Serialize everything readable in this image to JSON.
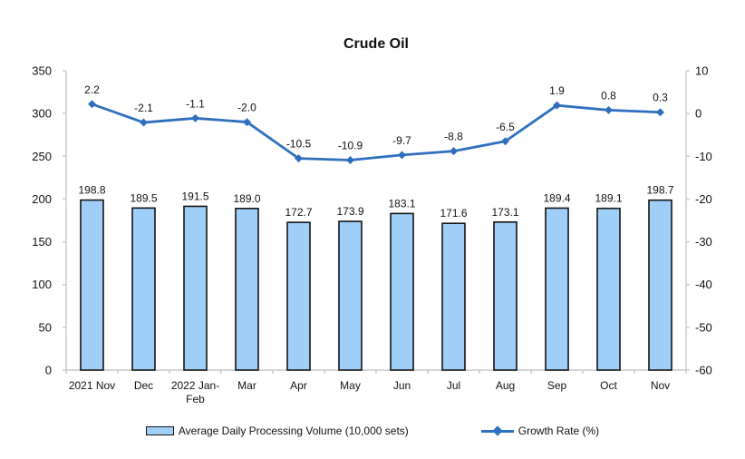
{
  "title": "Crude Oil",
  "colors": {
    "bar_fill": "#9fcff8",
    "bar_stroke": "#141414",
    "line": "#2e6fbe",
    "axis": "#c8c8c8",
    "text": "#111111"
  },
  "legend": [
    {
      "label": "Average Daily Processing Volume (10,000 sets)",
      "type": "bar-swatch"
    },
    {
      "label": "Growth Rate (%)",
      "type": "line-marker"
    }
  ],
  "chart_data": {
    "type": "bar+line",
    "title": "Crude Oil",
    "categories": [
      "2021 Nov",
      "Dec",
      "2022 Jan-Feb",
      "Mar",
      "Apr",
      "May",
      "Jun",
      "Jul",
      "Aug",
      "Sep",
      "Oct",
      "Nov"
    ],
    "display_categories": [
      "2021 Nov",
      "Dec",
      "2022 Jan-\nFeb",
      "Mar",
      "Apr",
      "May",
      "Jun",
      "Jul",
      "Aug",
      "Sep",
      "Oct",
      "Nov"
    ],
    "series": [
      {
        "name": "Average Daily Processing Volume (10,000 sets)",
        "type": "bar",
        "axis": "left",
        "values": [
          198.8,
          189.5,
          191.5,
          189.0,
          172.7,
          173.9,
          183.1,
          171.6,
          173.1,
          189.4,
          189.1,
          198.7
        ],
        "labels": [
          "198.8",
          "189.5",
          "191.5",
          "189.0",
          "172.7",
          "173.9",
          "183.1",
          "171.6",
          "173.1",
          "189.4",
          "189.1",
          "198.7"
        ]
      },
      {
        "name": "Growth Rate (%)",
        "type": "line",
        "axis": "right",
        "values": [
          2.2,
          -2.1,
          -1.1,
          -2.0,
          -10.5,
          -10.9,
          -9.7,
          -8.8,
          -6.5,
          1.9,
          0.8,
          0.3
        ],
        "labels": [
          "2.2",
          "-2.1",
          "-1.1",
          "-2.0",
          "-10.5",
          "-10.9",
          "-9.7",
          "-8.8",
          "-6.5",
          "1.9",
          "0.8",
          "0.3"
        ]
      }
    ],
    "left_axis": {
      "min": 0,
      "max": 350,
      "step": 50
    },
    "right_axis": {
      "min": -60,
      "max": 10,
      "step": 10
    },
    "grid": false,
    "legend_position": "bottom"
  }
}
